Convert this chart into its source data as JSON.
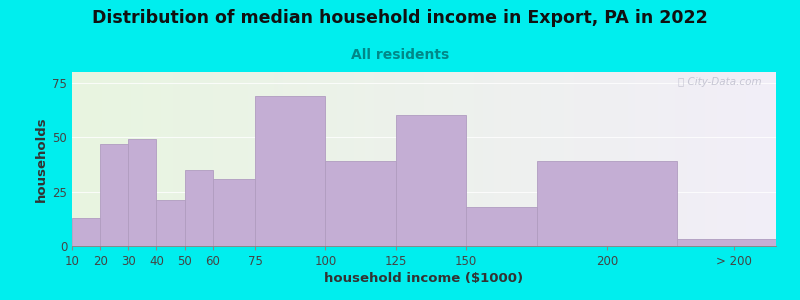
{
  "title": "Distribution of median household income in Export, PA in 2022",
  "subtitle": "All residents",
  "xlabel": "household income ($1000)",
  "ylabel": "households",
  "background_outer": "#00EEEE",
  "bar_color": "#c4aed4",
  "bar_edge_color": "#b09cc0",
  "title_fontsize": 12.5,
  "subtitle_fontsize": 10,
  "subtitle_color": "#008888",
  "values": [
    13,
    47,
    49,
    21,
    35,
    31,
    69,
    39,
    60,
    18,
    39,
    3
  ],
  "bin_edges": [
    10,
    20,
    30,
    40,
    50,
    60,
    75,
    100,
    125,
    150,
    175,
    225,
    260
  ],
  "ylim": [
    0,
    80
  ],
  "yticks": [
    0,
    25,
    50,
    75
  ],
  "xtick_positions": [
    10,
    20,
    30,
    40,
    50,
    60,
    75,
    100,
    125,
    150,
    200,
    245
  ],
  "xtick_labels": [
    "10",
    "20",
    "30",
    "40",
    "50",
    "60",
    "75",
    "100",
    "125",
    "150",
    "200",
    "> 200"
  ],
  "watermark": "Ⓢ City-Data.com"
}
